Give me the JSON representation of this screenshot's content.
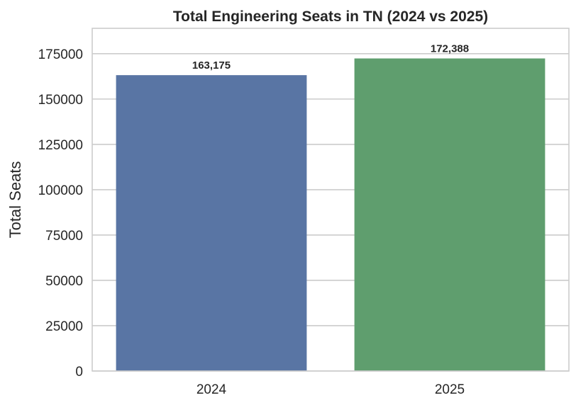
{
  "chart_data": {
    "type": "bar",
    "title": "Total Engineering Seats in TN (2024 vs 2025)",
    "xlabel": "",
    "ylabel": "Total Seats",
    "categories": [
      "2024",
      "2025"
    ],
    "values": [
      163175,
      172388
    ],
    "data_labels": [
      "163,175",
      "172,388"
    ],
    "bar_colors": [
      "#5975a4",
      "#5f9e6e"
    ],
    "ylim": [
      0,
      189000
    ],
    "yticks": [
      0,
      25000,
      50000,
      75000,
      100000,
      125000,
      150000,
      175000
    ],
    "ytick_labels": [
      "0",
      "25000",
      "50000",
      "75000",
      "100000",
      "125000",
      "150000",
      "175000"
    ],
    "grid": "horizontal",
    "legend": "none"
  }
}
